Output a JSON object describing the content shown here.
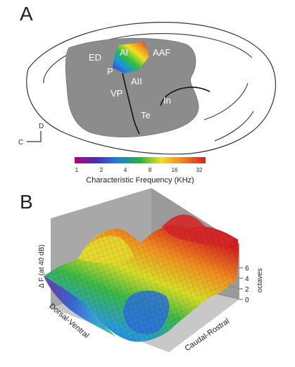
{
  "panel_a": {
    "label": "A",
    "regions": {
      "ai": "AI",
      "aaf": "AAF",
      "ed": "ED",
      "p": "P",
      "aii": "AII",
      "vp": "VP",
      "in": "In",
      "te": "Te"
    },
    "orientation": {
      "dorsal": "D",
      "caudal": "C"
    }
  },
  "colorbar": {
    "ticks": [
      "1",
      "2",
      "4",
      "8",
      "16",
      "32"
    ],
    "title": "Characteristic Frequency (KHz)",
    "colors": [
      "#b5007f",
      "#4b2bb3",
      "#1f7fe0",
      "#22b43a",
      "#f0e020",
      "#f08020",
      "#d92020"
    ]
  },
  "panel_b": {
    "label": "B",
    "z_axis_label": "Δ F (at 40 dB)",
    "z_ticks": [
      "0",
      "2",
      "4",
      "6"
    ],
    "z_unit": "octaves",
    "x_axis_label": "Dorsal-Ventral",
    "y_axis_label": "Caudal-Rostral"
  }
}
